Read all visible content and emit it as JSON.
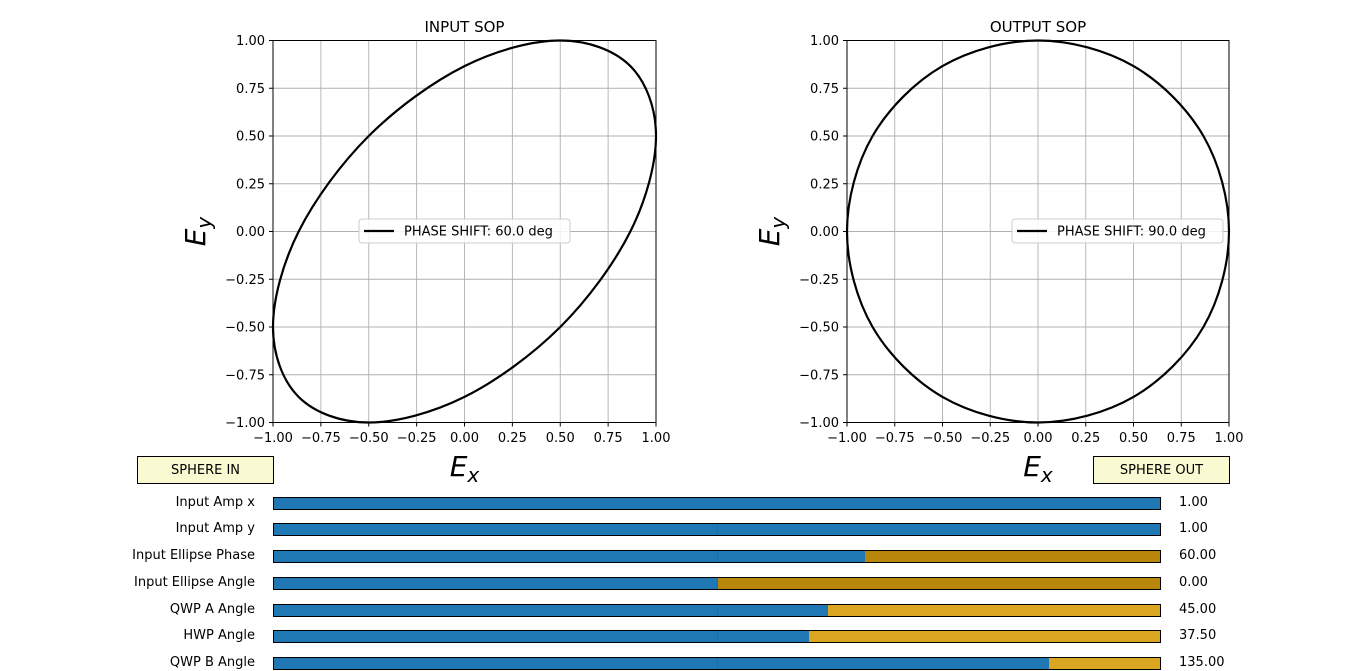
{
  "plots": [
    {
      "title": "INPUT SOP",
      "xlabel": "E",
      "xlabel_sub": "x",
      "ylabel": "E",
      "ylabel_sub": "y",
      "legend": "PHASE SHIFT: 60.0 deg",
      "xticks": [
        "−1.00",
        "−0.75",
        "−0.50",
        "−0.25",
        "0.00",
        "0.25",
        "0.50",
        "0.75",
        "1.00"
      ],
      "yticks": [
        "1.00",
        "0.75",
        "0.50",
        "0.25",
        "0.00",
        "−0.25",
        "−0.50",
        "−0.75",
        "−1.00"
      ]
    },
    {
      "title": "OUTPUT SOP",
      "xlabel": "E",
      "xlabel_sub": "x",
      "ylabel": "E",
      "ylabel_sub": "y",
      "legend": "PHASE SHIFT: 90.0 deg",
      "xticks": [
        "−1.00",
        "−0.75",
        "−0.50",
        "−0.25",
        "0.00",
        "0.25",
        "0.50",
        "0.75",
        "1.00"
      ],
      "yticks": [
        "1.00",
        "0.75",
        "0.50",
        "0.25",
        "0.00",
        "−0.25",
        "−0.50",
        "−0.75",
        "−1.00"
      ]
    }
  ],
  "chart_data": [
    {
      "type": "line",
      "title": "INPUT SOP",
      "xlabel": "E_x",
      "ylabel": "E_y",
      "xlim": [
        -1,
        1
      ],
      "ylim": [
        -1,
        1
      ],
      "grid": true,
      "legend_position": "center-right",
      "series": [
        {
          "name": "PHASE SHIFT: 60.0 deg",
          "x": [
            1.0,
            0.866,
            0.5,
            0.0,
            -0.5,
            -0.866,
            -1.0,
            -0.866,
            -0.5,
            0.0,
            0.5,
            0.866,
            1.0
          ],
          "y": [
            0.5,
            0.866,
            1.0,
            0.866,
            0.5,
            0.0,
            -0.5,
            -0.866,
            -1.0,
            -0.866,
            -0.5,
            0.0,
            0.5
          ]
        }
      ]
    },
    {
      "type": "line",
      "title": "OUTPUT SOP",
      "xlabel": "E_x",
      "ylabel": "E_y",
      "xlim": [
        -1,
        1
      ],
      "ylim": [
        -1,
        1
      ],
      "grid": true,
      "legend_position": "center-right",
      "series": [
        {
          "name": "PHASE SHIFT: 90.0 deg",
          "x": [
            1.0,
            0.866,
            0.5,
            0.0,
            -0.5,
            -0.866,
            -1.0,
            -0.866,
            -0.5,
            0.0,
            0.5,
            0.866,
            1.0
          ],
          "y": [
            0.0,
            0.5,
            0.866,
            1.0,
            0.866,
            0.5,
            0.0,
            -0.5,
            -0.866,
            -1.0,
            -0.866,
            -0.5,
            0.0
          ]
        }
      ]
    }
  ],
  "buttons": {
    "sphere_in": "SPHERE IN",
    "sphere_out": "SPHERE OUT"
  },
  "sliders": [
    {
      "label": "Input Amp x",
      "value_text": "1.00",
      "fraction": 1.0,
      "initial_marker": false
    },
    {
      "label": "Input Amp y",
      "value_text": "1.00",
      "fraction": 1.0,
      "initial_marker": true
    },
    {
      "label": "Input Ellipse Phase",
      "value_text": "60.00",
      "fraction": 0.6667,
      "initial_marker": true
    },
    {
      "label": "Input Ellipse Angle",
      "value_text": "0.00",
      "fraction": 0.5,
      "initial_marker": true
    },
    {
      "label": "QWP A Angle",
      "value_text": "45.00",
      "fraction": 0.625,
      "initial_marker": true
    },
    {
      "label": "HWP Angle",
      "value_text": "37.50",
      "fraction": 0.6042,
      "initial_marker": true
    },
    {
      "label": "QWP B Angle",
      "value_text": "135.00",
      "fraction": 0.875,
      "initial_marker": true
    }
  ],
  "colors": {
    "slider_fill": "#1f77b4",
    "slider_track_light": "#daa520",
    "slider_track_dark": "#b8860b",
    "slider_initial_marker": "#d62728",
    "button_bg": "#fafad2",
    "grid": "#b0b0b0",
    "curve": "#000000"
  }
}
